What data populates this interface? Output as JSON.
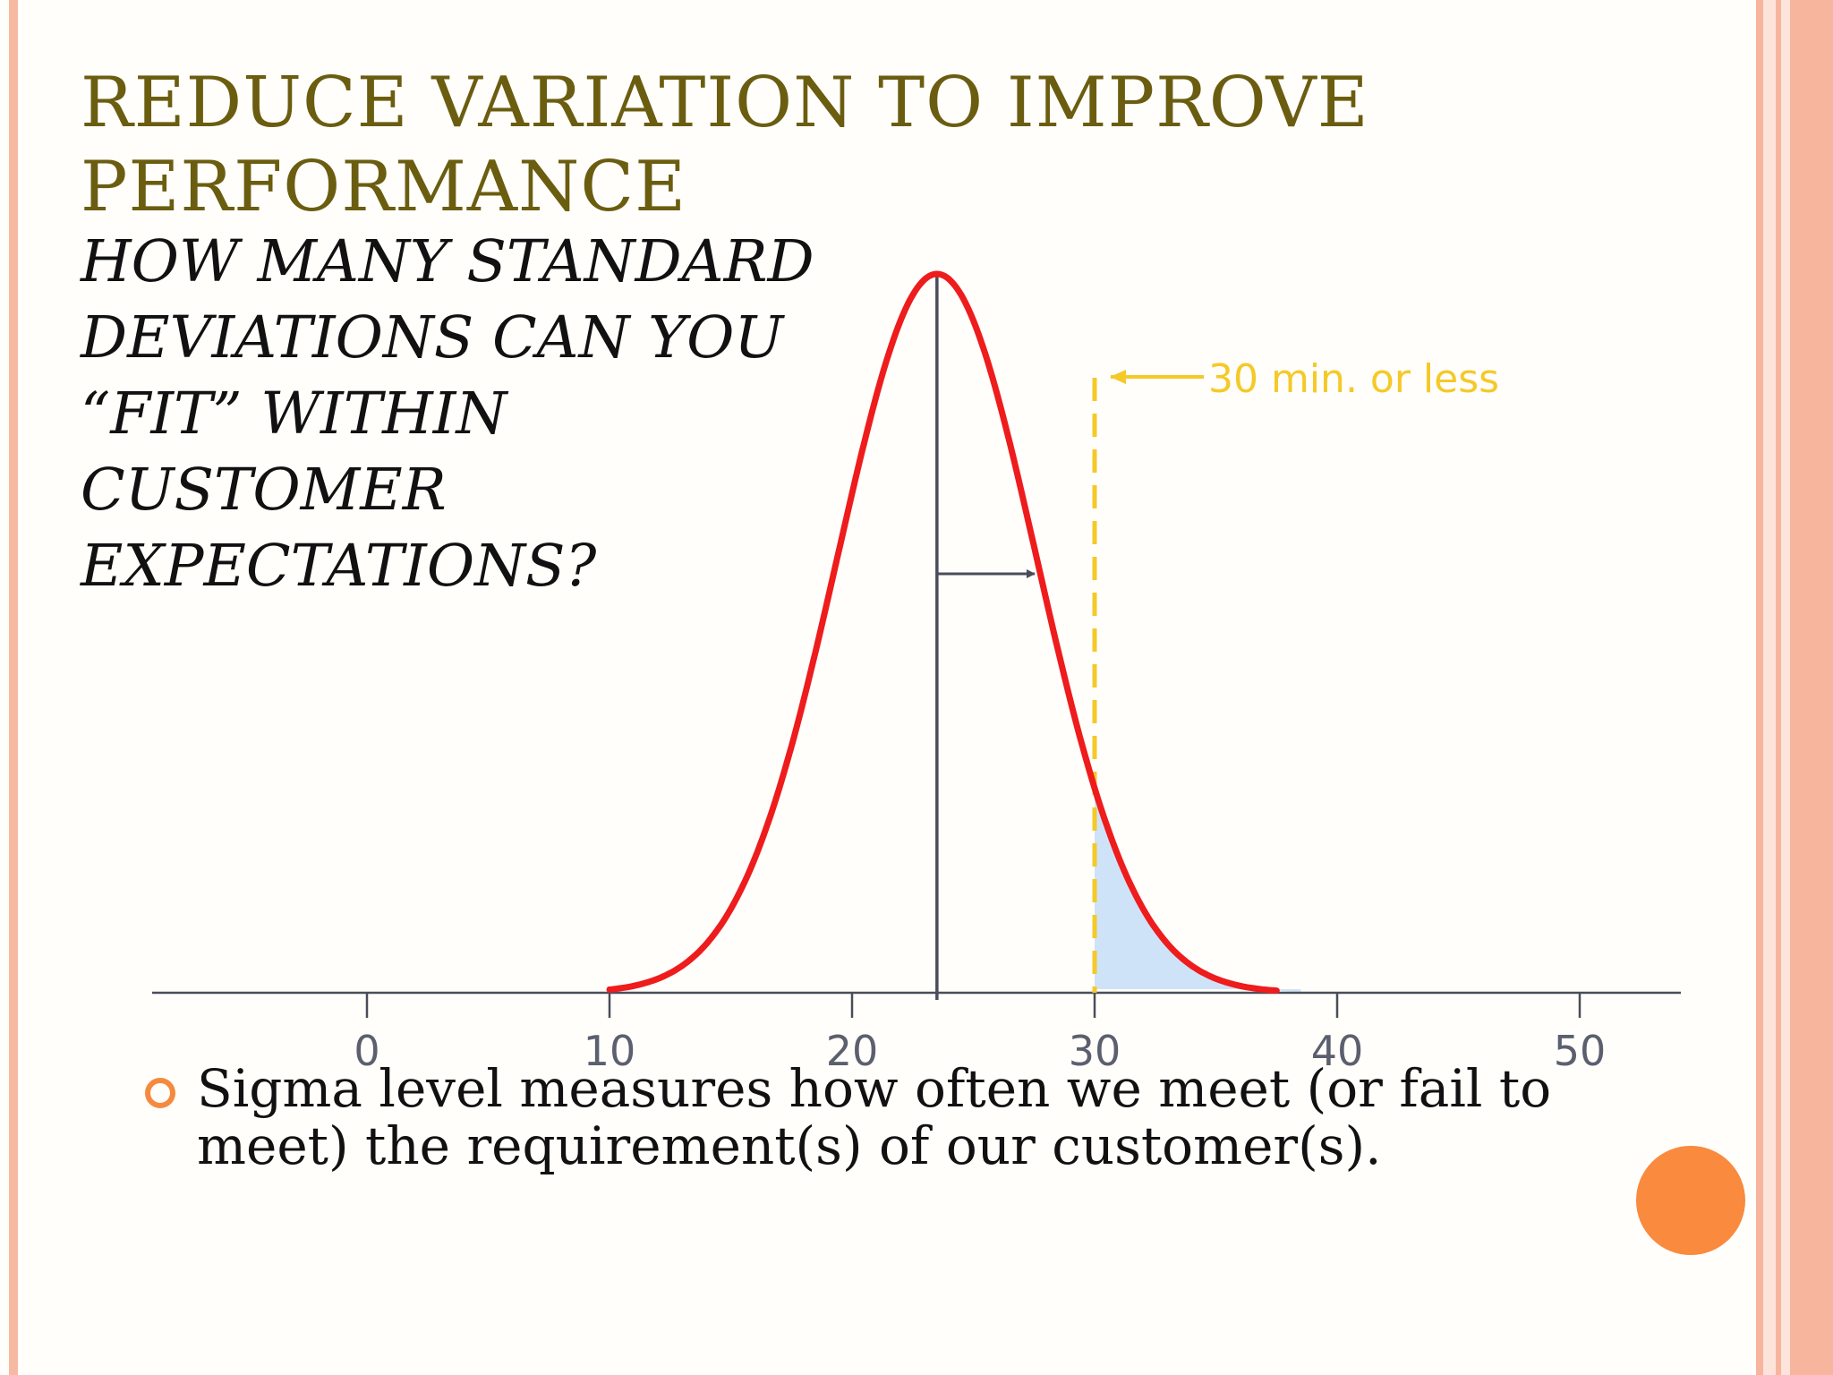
{
  "slide": {
    "title": "REDUCE VARIATION TO IMPROVE PERFORMANCE",
    "subtitle": "HOW MANY STANDARD DEVIATIONS CAN YOU “FIT” WITHIN CUSTOMER EXPECTATIONS?",
    "bullet": "Sigma level measures how often we meet (or fail to meet) the requirement(s) of our customer(s)."
  },
  "colors": {
    "title": "#6b5d10",
    "curve": "#ee1c1c",
    "spec_line": "#f5c928",
    "tail_fill": "#cfe3f8",
    "axis": "#4a4d59",
    "bullet_marker": "#f58a3f",
    "deco_circle": "#f98a3e"
  },
  "chart_data": {
    "type": "line",
    "title": "",
    "xlabel": "",
    "ylabel": "",
    "grid": false,
    "xlim": [
      -9,
      54
    ],
    "x_ticks": [
      0,
      10,
      20,
      30,
      40,
      50
    ],
    "x_tick_labels": [
      "0",
      "10",
      "20",
      "30",
      "40",
      "50"
    ],
    "series": [
      {
        "kind": "normal-distribution-curve",
        "mean": 23.5,
        "std_dev": 4.1,
        "x_range": [
          10,
          37.5
        ]
      }
    ],
    "mean_line_x": 23.5,
    "std_dev_arrow": {
      "from": 23.5,
      "to": 27.6
    },
    "spec_limit": {
      "x": 30,
      "label": "30 min. or less"
    },
    "shaded_tail": {
      "from": 30,
      "to": 38.5
    }
  }
}
